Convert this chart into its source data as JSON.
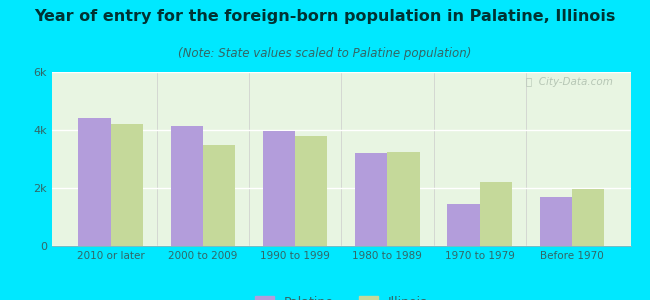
{
  "title": "Year of entry for the foreign-born population in Palatine, Illinois",
  "subtitle": "(Note: State values scaled to Palatine population)",
  "categories": [
    "2010 or later",
    "2000 to 2009",
    "1990 to 1999",
    "1980 to 1989",
    "1970 to 1979",
    "Before 1970"
  ],
  "palatine_values": [
    4400,
    4150,
    3980,
    3200,
    1450,
    1700
  ],
  "illinois_values": [
    4200,
    3500,
    3800,
    3250,
    2200,
    1950
  ],
  "palatine_color": "#b39ddb",
  "illinois_color": "#c5d99a",
  "background_outer": "#00e8ff",
  "background_inner_top": "#e8f5e8",
  "background_inner_bottom": "#f5fff5",
  "ylim": [
    0,
    6000
  ],
  "yticks": [
    0,
    2000,
    4000,
    6000
  ],
  "ytick_labels": [
    "0",
    "2k",
    "4k",
    "6k"
  ],
  "bar_width": 0.35,
  "title_fontsize": 11.5,
  "subtitle_fontsize": 8.5,
  "legend_labels": [
    "Palatine",
    "Illinois"
  ],
  "watermark": "ⓘ  City-Data.com",
  "tick_color": "#336666",
  "title_color": "#003333",
  "subtitle_color": "#336666"
}
